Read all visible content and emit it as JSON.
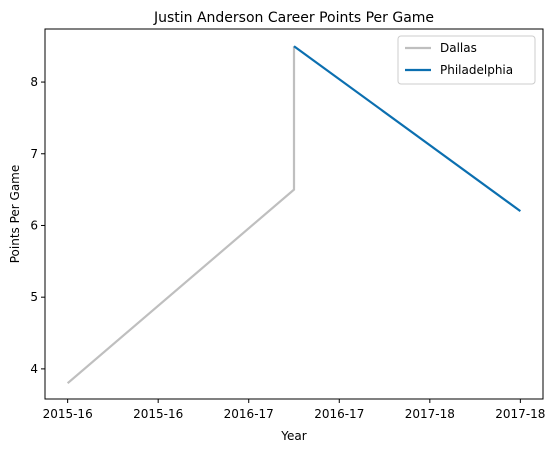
{
  "chart_data": {
    "type": "line",
    "title": "Justin Anderson  Career Points Per Game",
    "xlabel": "Year",
    "ylabel": "Points Per Game",
    "x_tick_labels": [
      "2015-16",
      "2015-16",
      "2016-17",
      "2016-17",
      "2017-18",
      "2017-18"
    ],
    "x_range": [
      -0.1,
      2.1
    ],
    "ylim": [
      3.58,
      8.74
    ],
    "y_ticks": [
      4,
      5,
      6,
      7,
      8
    ],
    "grid": false,
    "legend_position": "top-right",
    "series": [
      {
        "name": "Dallas",
        "color": "#bfbfbf",
        "points": [
          {
            "x": 0.0,
            "y": 3.8
          },
          {
            "x": 1.0,
            "y": 6.5
          },
          {
            "x": 1.0,
            "y": 8.5
          }
        ]
      },
      {
        "name": "Philadelphia",
        "color": "#0b6fb0",
        "points": [
          {
            "x": 1.0,
            "y": 8.5
          },
          {
            "x": 2.0,
            "y": 6.2
          }
        ]
      }
    ]
  }
}
